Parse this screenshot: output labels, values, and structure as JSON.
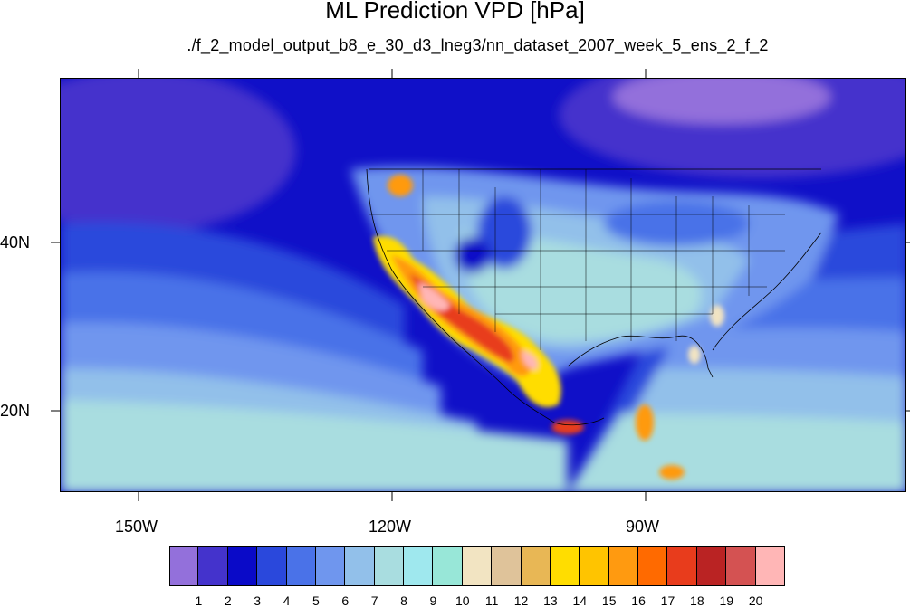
{
  "title": "ML Prediction VPD [hPa]",
  "subtitle": "./f_2_model_output_b8_e_30_d3_lneg3/nn_dataset_2007_week_5_ens_2_f_2",
  "axes": {
    "lon_ticks": [
      "150W",
      "120W",
      "90W"
    ],
    "lat_ticks": [
      "40N",
      "20N"
    ]
  },
  "colorbar": {
    "labels": [
      "1",
      "2",
      "3",
      "4",
      "5",
      "6",
      "7",
      "8",
      "9",
      "10",
      "11",
      "12",
      "13",
      "14",
      "15",
      "16",
      "17",
      "18",
      "19",
      "20"
    ],
    "colors": [
      "#9370db",
      "#4433cc",
      "#0a0ac8",
      "#2a48dc",
      "#4a72e8",
      "#6f96ee",
      "#92c0ea",
      "#a9dde0",
      "#9fe8ee",
      "#98e7d8",
      "#f2e4c2",
      "#dfc39a",
      "#e8b755",
      "#ffdd00",
      "#ffc400",
      "#ff9a10",
      "#ff6a00",
      "#e83c1c",
      "#ba2323",
      "#d45252",
      "#ffb6b6"
    ]
  }
}
